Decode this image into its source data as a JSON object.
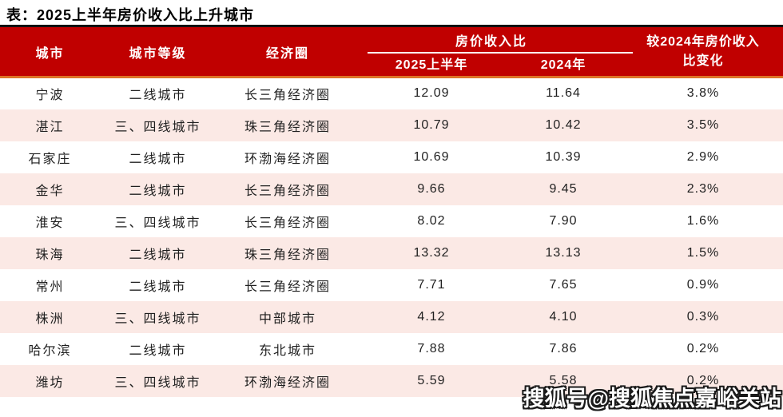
{
  "title": "表：2025上半年房价收入比上升城市",
  "watermark": "搜狐号@搜狐焦点嘉峪关站",
  "colors": {
    "header_bg": "#C00000",
    "row_alt_bg": "#FBE9E5",
    "accent_line": "#DD7327",
    "top_border": "#111111",
    "header_text": "#FFFFFF",
    "body_text": "#1F1F1F"
  },
  "chart_data": {
    "type": "table",
    "title": "表：2025上半年房价收入比上升城市",
    "column_groups": [
      {
        "label": "房价收入比",
        "span": [
          "2025上半年",
          "2024年"
        ]
      }
    ],
    "columns": [
      "城市",
      "城市等级",
      "经济圈",
      "2025上半年",
      "2024年",
      "较2024年房价收入比变化"
    ],
    "rows": [
      [
        "宁波",
        "二线城市",
        "长三角经济圈",
        "12.09",
        "11.64",
        "3.8%"
      ],
      [
        "湛江",
        "三、四线城市",
        "珠三角经济圈",
        "10.79",
        "10.42",
        "3.5%"
      ],
      [
        "石家庄",
        "二线城市",
        "环渤海经济圈",
        "10.69",
        "10.39",
        "2.9%"
      ],
      [
        "金华",
        "二线城市",
        "长三角经济圈",
        "9.66",
        "9.45",
        "2.3%"
      ],
      [
        "淮安",
        "三、四线城市",
        "长三角经济圈",
        "8.02",
        "7.90",
        "1.6%"
      ],
      [
        "珠海",
        "二线城市",
        "珠三角经济圈",
        "13.32",
        "13.13",
        "1.5%"
      ],
      [
        "常州",
        "二线城市",
        "长三角经济圈",
        "7.71",
        "7.65",
        "0.9%"
      ],
      [
        "株洲",
        "三、四线城市",
        "中部城市",
        "4.12",
        "4.10",
        "0.3%"
      ],
      [
        "哈尔滨",
        "二线城市",
        "东北城市",
        "7.88",
        "7.86",
        "0.2%"
      ],
      [
        "潍坊",
        "三、四线城市",
        "环渤海经济圈",
        "5.59",
        "5.58",
        "0.2%"
      ]
    ]
  }
}
